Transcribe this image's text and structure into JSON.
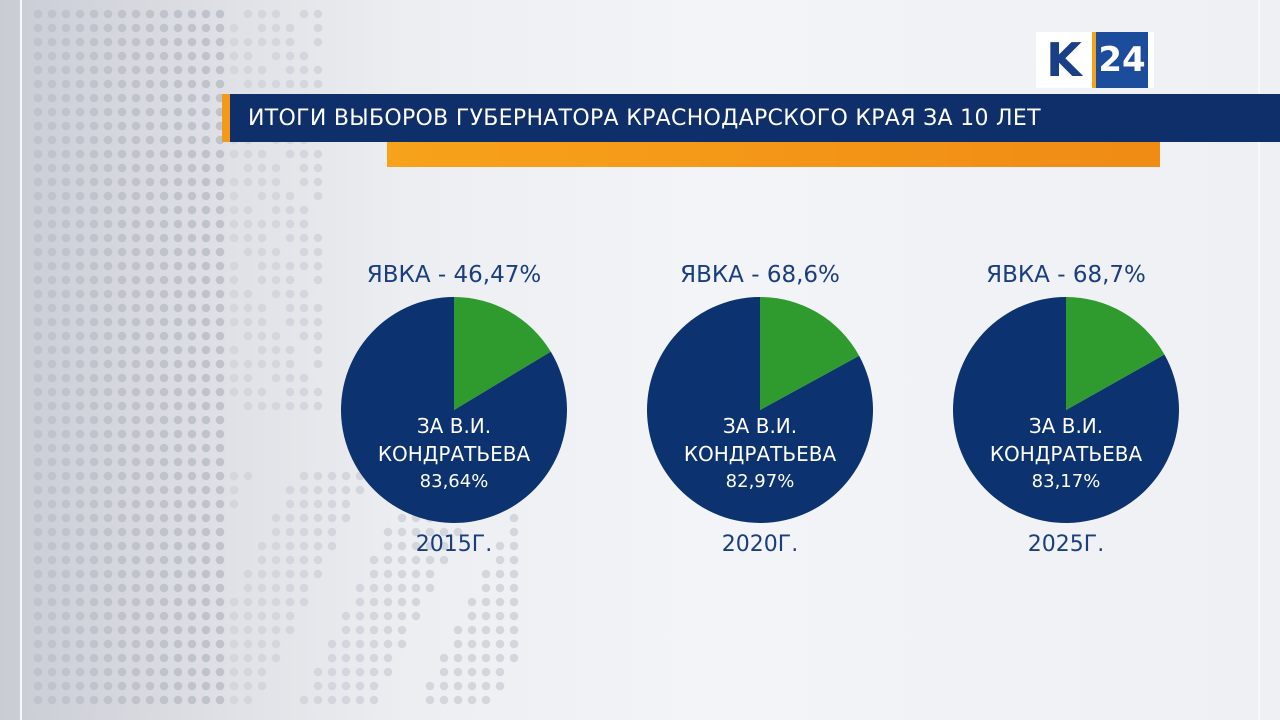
{
  "logo": {
    "left": "K",
    "right": "24"
  },
  "title": "ИТОГИ ВЫБОРОВ ГУБЕРНАТОРА КРАСНОДАРСКОГО КРАЯ ЗА 10 ЛЕТ",
  "colors": {
    "main_slice": "#0c336f",
    "other_slice": "#2f9a2e",
    "title_bg": "#0f2f6b",
    "accent": "#f49a1a",
    "text": "#1a3e7e"
  },
  "chart_data": [
    {
      "type": "pie",
      "title": "ЯВКА - 46,47%",
      "year": "2015Г.",
      "label_line1": "ЗА В.И.",
      "label_line2": "КОНДРАТЬЕВА",
      "label_value": "83,64%",
      "slices": [
        {
          "name": "ЗА В.И. КОНДРАТЬЕВА",
          "value": 83.64,
          "color": "#0c336f"
        },
        {
          "name": "",
          "value": 16.36,
          "color": "#2f9a2e"
        }
      ]
    },
    {
      "type": "pie",
      "title": "ЯВКА - 68,6%",
      "year": "2020Г.",
      "label_line1": "ЗА В.И.",
      "label_line2": "КОНДРАТЬЕВА",
      "label_value": "82,97%",
      "slices": [
        {
          "name": "ЗА В.И. КОНДРАТЬЕВА",
          "value": 82.97,
          "color": "#0c336f"
        },
        {
          "name": "",
          "value": 17.03,
          "color": "#2f9a2e"
        }
      ]
    },
    {
      "type": "pie",
      "title": "ЯВКА - 68,7%",
      "year": "2025Г.",
      "label_line1": "ЗА В.И.",
      "label_line2": "КОНДРАТЬЕВА",
      "label_value": "83,17%",
      "slices": [
        {
          "name": "ЗА В.И. КОНДРАТЬЕВА",
          "value": 83.17,
          "color": "#0c336f"
        },
        {
          "name": "",
          "value": 16.83,
          "color": "#2f9a2e"
        }
      ]
    }
  ]
}
